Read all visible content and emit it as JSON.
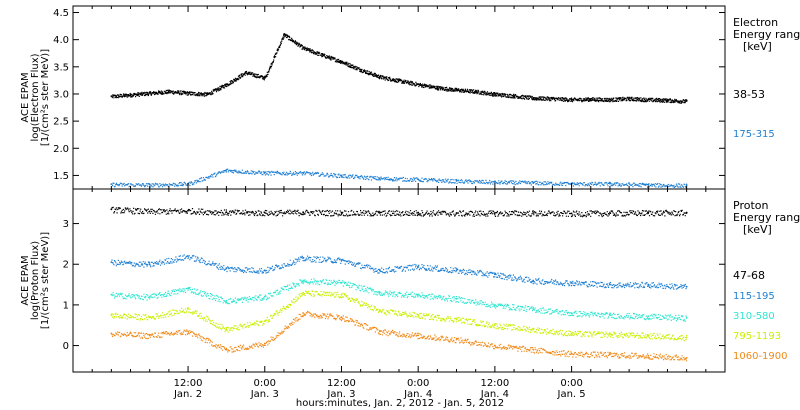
{
  "chart_data": [
    {
      "type": "scatter",
      "panel": "electron",
      "ylabel": [
        "ACE EPAM",
        "log(Electron Flux)",
        "[1/(cm²s ster MeV)]"
      ],
      "ylim": [
        1.25,
        4.62
      ],
      "yticks": [
        1.5,
        2.0,
        2.5,
        3.0,
        3.5,
        4.0,
        4.5
      ],
      "ytick_labels": [
        "1.5",
        "2.0",
        "2.5",
        "3.0",
        "3.5",
        "4.0",
        "4.5"
      ],
      "legend_title": [
        "Electron",
        "Energy range",
        "[keV]"
      ],
      "series": [
        {
          "name": "38-53",
          "color": "#000000",
          "x": [
            0,
            3,
            6,
            9,
            12,
            15,
            18,
            21,
            24,
            27,
            30,
            33,
            36,
            39,
            42,
            45,
            48,
            51,
            54,
            57,
            60,
            63,
            66,
            69,
            72,
            75,
            78,
            81,
            84,
            87,
            90
          ],
          "y": [
            2.96,
            2.99,
            3.02,
            3.05,
            3.02,
            3.0,
            3.18,
            3.4,
            3.3,
            4.1,
            3.85,
            3.72,
            3.6,
            3.45,
            3.32,
            3.25,
            3.18,
            3.12,
            3.08,
            3.05,
            3.0,
            2.97,
            2.93,
            2.92,
            2.9,
            2.91,
            2.9,
            2.92,
            2.9,
            2.89,
            2.87
          ]
        },
        {
          "name": "175-315",
          "color": "#1f7fd2",
          "x": [
            0,
            6,
            12,
            18,
            24,
            30,
            36,
            42,
            48,
            54,
            60,
            66,
            72,
            78,
            84,
            90
          ],
          "y": [
            1.34,
            1.33,
            1.35,
            1.6,
            1.55,
            1.55,
            1.5,
            1.45,
            1.43,
            1.4,
            1.38,
            1.37,
            1.35,
            1.35,
            1.33,
            1.32
          ]
        }
      ]
    },
    {
      "type": "scatter",
      "panel": "proton",
      "ylabel": [
        "ACE EPAM",
        "log(Proton Flux)",
        "[1/(cm²s ster MeV)]"
      ],
      "ylim": [
        -0.65,
        3.85
      ],
      "yticks": [
        0,
        1,
        2,
        3
      ],
      "ytick_labels": [
        "0",
        "1",
        "2",
        "3"
      ],
      "legend_title": [
        "Proton",
        "Energy range",
        "[keV]"
      ],
      "series": [
        {
          "name": "47-68",
          "color": "#000000",
          "x": [
            0,
            6,
            12,
            18,
            24,
            30,
            36,
            42,
            48,
            54,
            60,
            66,
            72,
            78,
            84,
            90
          ],
          "y": [
            3.35,
            3.3,
            3.32,
            3.28,
            3.27,
            3.28,
            3.27,
            3.26,
            3.27,
            3.26,
            3.26,
            3.26,
            3.25,
            3.26,
            3.27,
            3.27
          ]
        },
        {
          "name": "115-195",
          "color": "#1f7fd2",
          "x": [
            0,
            6,
            12,
            18,
            24,
            30,
            36,
            42,
            48,
            54,
            60,
            66,
            72,
            78,
            84,
            90
          ],
          "y": [
            2.05,
            2.0,
            2.2,
            1.9,
            1.85,
            2.15,
            2.1,
            1.85,
            1.95,
            1.85,
            1.75,
            1.6,
            1.55,
            1.5,
            1.5,
            1.45
          ]
        },
        {
          "name": "310-580",
          "color": "#2ee6d0",
          "x": [
            0,
            6,
            12,
            18,
            24,
            30,
            36,
            42,
            48,
            54,
            60,
            66,
            72,
            78,
            84,
            90
          ],
          "y": [
            1.25,
            1.2,
            1.4,
            1.1,
            1.2,
            1.6,
            1.55,
            1.3,
            1.25,
            1.15,
            1.0,
            0.9,
            0.8,
            0.75,
            0.72,
            0.68
          ]
        },
        {
          "name": "795-1193",
          "color": "#c8f000",
          "x": [
            0,
            6,
            12,
            18,
            24,
            30,
            36,
            42,
            48,
            54,
            60,
            66,
            72,
            78,
            84,
            90
          ],
          "y": [
            0.75,
            0.7,
            0.9,
            0.4,
            0.6,
            1.3,
            1.25,
            0.85,
            0.75,
            0.65,
            0.5,
            0.4,
            0.3,
            0.28,
            0.25,
            0.2
          ]
        },
        {
          "name": "1060-1900",
          "color": "#f08a1a",
          "x": [
            0,
            6,
            12,
            18,
            24,
            30,
            36,
            42,
            48,
            54,
            60,
            66,
            72,
            78,
            84,
            90
          ],
          "y": [
            0.3,
            0.25,
            0.35,
            -0.1,
            0.05,
            0.8,
            0.7,
            0.35,
            0.25,
            0.15,
            0.0,
            -0.1,
            -0.2,
            -0.22,
            -0.25,
            -0.3
          ]
        }
      ]
    }
  ],
  "time_axis": {
    "ticks": [
      {
        "hours": 12,
        "time": "12:00",
        "date": "Jan. 2"
      },
      {
        "hours": 24,
        "time": "0:00",
        "date": "Jan. 3"
      },
      {
        "hours": 36,
        "time": "12:00",
        "date": "Jan. 3"
      },
      {
        "hours": 48,
        "time": "0:00",
        "date": "Jan. 4"
      },
      {
        "hours": 60,
        "time": "12:00",
        "date": "Jan. 4"
      },
      {
        "hours": 72,
        "time": "0:00",
        "date": "Jan. 5"
      }
    ],
    "xlim": [
      -6,
      96
    ],
    "xlabel": "hours:minutes, Jan.  2, 2012 - Jan.  5, 2012"
  }
}
